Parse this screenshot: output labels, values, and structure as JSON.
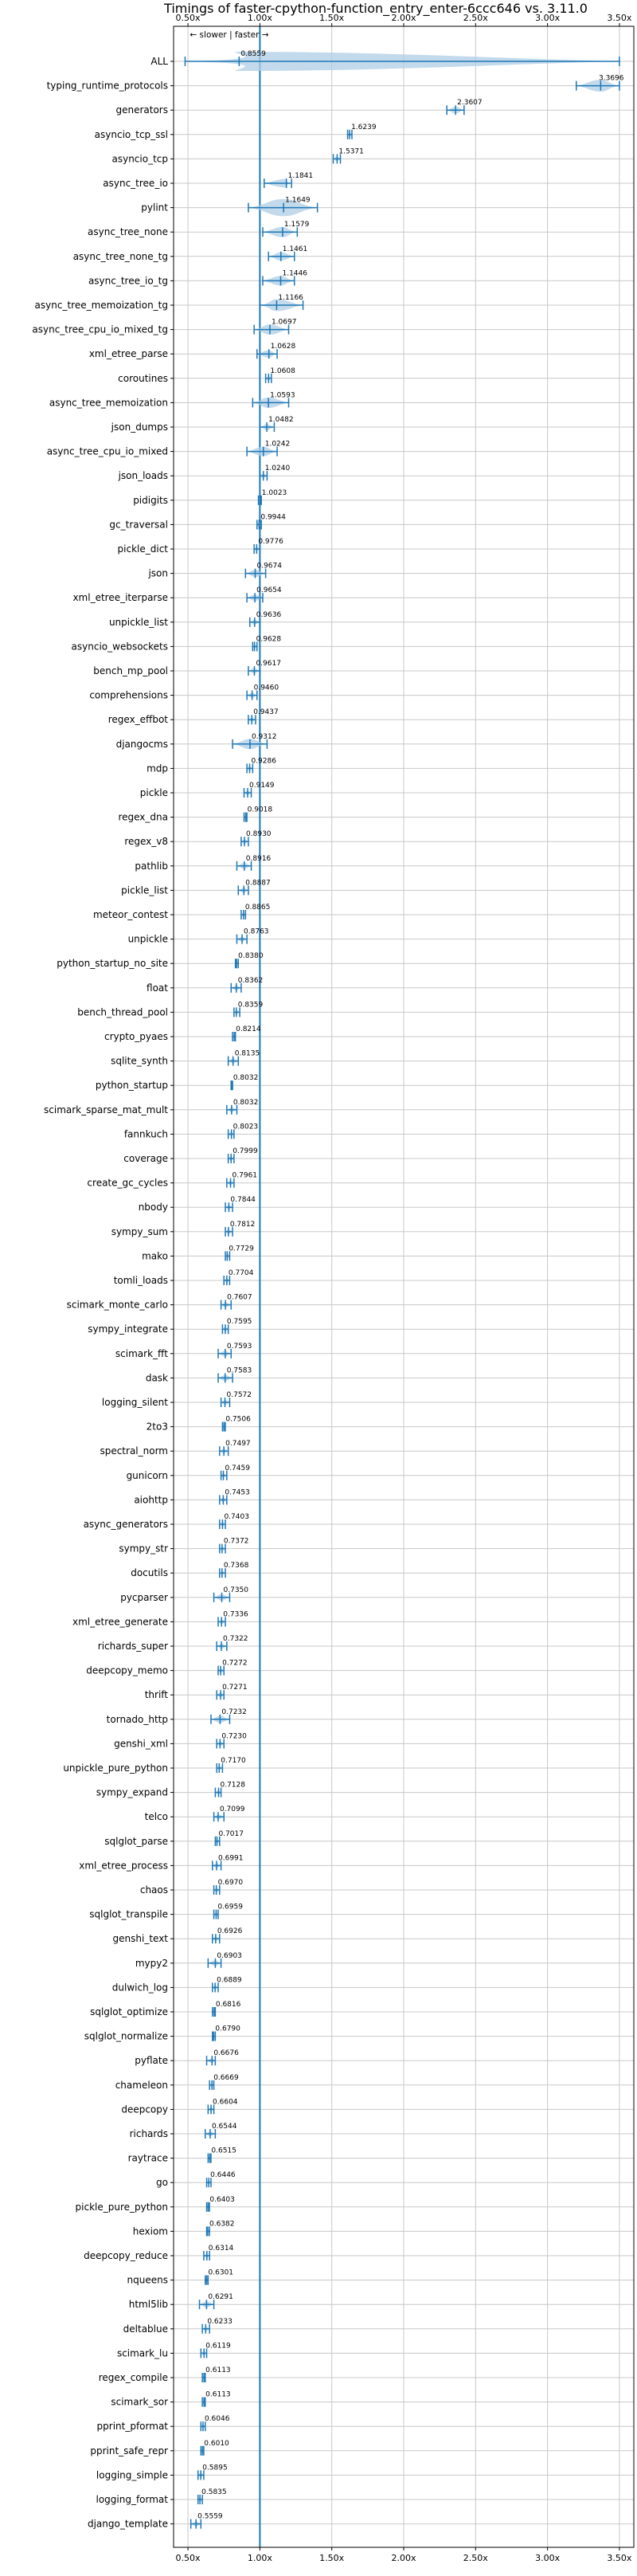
{
  "chart_data": {
    "type": "violin",
    "title": "Timings of faster-cpython-function_entry_enter-6ccc646 vs. 3.11.0",
    "direction_note": "← slower | faster →",
    "x_axis": {
      "range": [
        0.4,
        3.6
      ],
      "ticks": [
        0.5,
        1.0,
        1.5,
        2.0,
        2.5,
        3.0,
        3.5
      ],
      "tick_labels": [
        "0.50x",
        "1.00x",
        "1.50x",
        "2.00x",
        "2.50x",
        "3.00x",
        "3.50x"
      ],
      "reference_line": 1.0,
      "grid": true
    },
    "legend": null,
    "benchmarks": [
      {
        "name": "ALL",
        "value": 0.8559,
        "spread": [
          0.48,
          3.5
        ]
      },
      {
        "name": "typing_runtime_protocols",
        "value": 3.3696,
        "spread": [
          3.2,
          3.5
        ]
      },
      {
        "name": "generators",
        "value": 2.3607,
        "spread": [
          2.3,
          2.42
        ]
      },
      {
        "name": "asyncio_tcp_ssl",
        "value": 1.6239,
        "spread": [
          1.61,
          1.64
        ]
      },
      {
        "name": "asyncio_tcp",
        "value": 1.5371,
        "spread": [
          1.51,
          1.56
        ]
      },
      {
        "name": "async_tree_io",
        "value": 1.1841,
        "spread": [
          1.03,
          1.22
        ]
      },
      {
        "name": "pylint",
        "value": 1.1649,
        "spread": [
          0.92,
          1.4
        ]
      },
      {
        "name": "async_tree_none",
        "value": 1.1579,
        "spread": [
          1.02,
          1.26
        ]
      },
      {
        "name": "async_tree_none_tg",
        "value": 1.1461,
        "spread": [
          1.06,
          1.24
        ]
      },
      {
        "name": "async_tree_io_tg",
        "value": 1.1446,
        "spread": [
          1.02,
          1.24
        ]
      },
      {
        "name": "async_tree_memoization_tg",
        "value": 1.1166,
        "spread": [
          1.0,
          1.3
        ]
      },
      {
        "name": "async_tree_cpu_io_mixed_tg",
        "value": 1.0697,
        "spread": [
          0.96,
          1.2
        ]
      },
      {
        "name": "xml_etree_parse",
        "value": 1.0628,
        "spread": [
          0.98,
          1.12
        ]
      },
      {
        "name": "coroutines",
        "value": 1.0608,
        "spread": [
          1.04,
          1.08
        ]
      },
      {
        "name": "async_tree_memoization",
        "value": 1.0593,
        "spread": [
          0.95,
          1.2
        ]
      },
      {
        "name": "json_dumps",
        "value": 1.0482,
        "spread": [
          1.0,
          1.1
        ]
      },
      {
        "name": "async_tree_cpu_io_mixed",
        "value": 1.0242,
        "spread": [
          0.91,
          1.12
        ]
      },
      {
        "name": "json_loads",
        "value": 1.024,
        "spread": [
          1.0,
          1.05
        ]
      },
      {
        "name": "pidigits",
        "value": 1.0023,
        "spread": [
          0.99,
          1.01
        ]
      },
      {
        "name": "gc_traversal",
        "value": 0.9944,
        "spread": [
          0.98,
          1.01
        ]
      },
      {
        "name": "pickle_dict",
        "value": 0.9776,
        "spread": [
          0.96,
          1.0
        ]
      },
      {
        "name": "json",
        "value": 0.9674,
        "spread": [
          0.9,
          1.04
        ]
      },
      {
        "name": "xml_etree_iterparse",
        "value": 0.9654,
        "spread": [
          0.91,
          1.02
        ]
      },
      {
        "name": "unpickle_list",
        "value": 0.9636,
        "spread": [
          0.93,
          1.0
        ]
      },
      {
        "name": "asyncio_websockets",
        "value": 0.9628,
        "spread": [
          0.95,
          0.98
        ]
      },
      {
        "name": "bench_mp_pool",
        "value": 0.9617,
        "spread": [
          0.92,
          1.0
        ]
      },
      {
        "name": "comprehensions",
        "value": 0.946,
        "spread": [
          0.91,
          0.98
        ]
      },
      {
        "name": "regex_effbot",
        "value": 0.9437,
        "spread": [
          0.92,
          0.97
        ]
      },
      {
        "name": "djangocms",
        "value": 0.9312,
        "spread": [
          0.81,
          1.05
        ]
      },
      {
        "name": "mdp",
        "value": 0.9286,
        "spread": [
          0.91,
          0.95
        ]
      },
      {
        "name": "pickle",
        "value": 0.9149,
        "spread": [
          0.89,
          0.94
        ]
      },
      {
        "name": "regex_dna",
        "value": 0.9018,
        "spread": [
          0.89,
          0.91
        ]
      },
      {
        "name": "regex_v8",
        "value": 0.893,
        "spread": [
          0.87,
          0.92
        ]
      },
      {
        "name": "pathlib",
        "value": 0.8916,
        "spread": [
          0.84,
          0.94
        ]
      },
      {
        "name": "pickle_list",
        "value": 0.8887,
        "spread": [
          0.85,
          0.92
        ]
      },
      {
        "name": "meteor_contest",
        "value": 0.8865,
        "spread": [
          0.87,
          0.9
        ]
      },
      {
        "name": "unpickle",
        "value": 0.8763,
        "spread": [
          0.84,
          0.91
        ]
      },
      {
        "name": "python_startup_no_site",
        "value": 0.838,
        "spread": [
          0.83,
          0.85
        ]
      },
      {
        "name": "float",
        "value": 0.8362,
        "spread": [
          0.8,
          0.87
        ]
      },
      {
        "name": "bench_thread_pool",
        "value": 0.8359,
        "spread": [
          0.82,
          0.86
        ]
      },
      {
        "name": "crypto_pyaes",
        "value": 0.8214,
        "spread": [
          0.81,
          0.83
        ]
      },
      {
        "name": "sqlite_synth",
        "value": 0.8135,
        "spread": [
          0.78,
          0.85
        ]
      },
      {
        "name": "python_startup",
        "value": 0.8032,
        "spread": [
          0.8,
          0.81
        ]
      },
      {
        "name": "scimark_sparse_mat_mult",
        "value": 0.8032,
        "spread": [
          0.77,
          0.84
        ]
      },
      {
        "name": "fannkuch",
        "value": 0.8023,
        "spread": [
          0.78,
          0.82
        ]
      },
      {
        "name": "coverage",
        "value": 0.7999,
        "spread": [
          0.78,
          0.82
        ]
      },
      {
        "name": "create_gc_cycles",
        "value": 0.7961,
        "spread": [
          0.77,
          0.82
        ]
      },
      {
        "name": "nbody",
        "value": 0.7844,
        "spread": [
          0.76,
          0.81
        ]
      },
      {
        "name": "sympy_sum",
        "value": 0.7812,
        "spread": [
          0.76,
          0.81
        ]
      },
      {
        "name": "mako",
        "value": 0.7729,
        "spread": [
          0.76,
          0.79
        ]
      },
      {
        "name": "tomli_loads",
        "value": 0.7704,
        "spread": [
          0.75,
          0.79
        ]
      },
      {
        "name": "scimark_monte_carlo",
        "value": 0.7607,
        "spread": [
          0.73,
          0.8
        ]
      },
      {
        "name": "sympy_integrate",
        "value": 0.7595,
        "spread": [
          0.74,
          0.78
        ]
      },
      {
        "name": "scimark_fft",
        "value": 0.7593,
        "spread": [
          0.71,
          0.8
        ]
      },
      {
        "name": "dask",
        "value": 0.7583,
        "spread": [
          0.71,
          0.81
        ]
      },
      {
        "name": "logging_silent",
        "value": 0.7572,
        "spread": [
          0.73,
          0.79
        ]
      },
      {
        "name": "2to3",
        "value": 0.7506,
        "spread": [
          0.74,
          0.76
        ]
      },
      {
        "name": "spectral_norm",
        "value": 0.7497,
        "spread": [
          0.72,
          0.78
        ]
      },
      {
        "name": "gunicorn",
        "value": 0.7459,
        "spread": [
          0.73,
          0.77
        ]
      },
      {
        "name": "aiohttp",
        "value": 0.7453,
        "spread": [
          0.72,
          0.77
        ]
      },
      {
        "name": "async_generators",
        "value": 0.7403,
        "spread": [
          0.72,
          0.76
        ]
      },
      {
        "name": "sympy_str",
        "value": 0.7372,
        "spread": [
          0.72,
          0.76
        ]
      },
      {
        "name": "docutils",
        "value": 0.7368,
        "spread": [
          0.72,
          0.76
        ]
      },
      {
        "name": "pycparser",
        "value": 0.735,
        "spread": [
          0.68,
          0.79
        ]
      },
      {
        "name": "xml_etree_generate",
        "value": 0.7336,
        "spread": [
          0.71,
          0.76
        ]
      },
      {
        "name": "richards_super",
        "value": 0.7322,
        "spread": [
          0.7,
          0.77
        ]
      },
      {
        "name": "deepcopy_memo",
        "value": 0.7272,
        "spread": [
          0.71,
          0.75
        ]
      },
      {
        "name": "thrift",
        "value": 0.7271,
        "spread": [
          0.7,
          0.75
        ]
      },
      {
        "name": "tornado_http",
        "value": 0.7232,
        "spread": [
          0.66,
          0.79
        ]
      },
      {
        "name": "genshi_xml",
        "value": 0.723,
        "spread": [
          0.7,
          0.75
        ]
      },
      {
        "name": "unpickle_pure_python",
        "value": 0.717,
        "spread": [
          0.7,
          0.74
        ]
      },
      {
        "name": "sympy_expand",
        "value": 0.7128,
        "spread": [
          0.69,
          0.73
        ]
      },
      {
        "name": "telco",
        "value": 0.7099,
        "spread": [
          0.68,
          0.75
        ]
      },
      {
        "name": "sqlglot_parse",
        "value": 0.7017,
        "spread": [
          0.69,
          0.72
        ]
      },
      {
        "name": "xml_etree_process",
        "value": 0.6991,
        "spread": [
          0.67,
          0.73
        ]
      },
      {
        "name": "chaos",
        "value": 0.697,
        "spread": [
          0.68,
          0.72
        ]
      },
      {
        "name": "sqlglot_transpile",
        "value": 0.6959,
        "spread": [
          0.68,
          0.71
        ]
      },
      {
        "name": "genshi_text",
        "value": 0.6926,
        "spread": [
          0.67,
          0.72
        ]
      },
      {
        "name": "mypy2",
        "value": 0.6903,
        "spread": [
          0.64,
          0.73
        ]
      },
      {
        "name": "dulwich_log",
        "value": 0.6889,
        "spread": [
          0.67,
          0.71
        ]
      },
      {
        "name": "sqlglot_optimize",
        "value": 0.6816,
        "spread": [
          0.67,
          0.69
        ]
      },
      {
        "name": "sqlglot_normalize",
        "value": 0.679,
        "spread": [
          0.67,
          0.69
        ]
      },
      {
        "name": "pyflate",
        "value": 0.6676,
        "spread": [
          0.63,
          0.69
        ]
      },
      {
        "name": "chameleon",
        "value": 0.6669,
        "spread": [
          0.65,
          0.68
        ]
      },
      {
        "name": "deepcopy",
        "value": 0.6604,
        "spread": [
          0.64,
          0.68
        ]
      },
      {
        "name": "richards",
        "value": 0.6544,
        "spread": [
          0.62,
          0.69
        ]
      },
      {
        "name": "raytrace",
        "value": 0.6515,
        "spread": [
          0.64,
          0.66
        ]
      },
      {
        "name": "go",
        "value": 0.6446,
        "spread": [
          0.63,
          0.66
        ]
      },
      {
        "name": "pickle_pure_python",
        "value": 0.6403,
        "spread": [
          0.63,
          0.65
        ]
      },
      {
        "name": "hexiom",
        "value": 0.6382,
        "spread": [
          0.63,
          0.65
        ]
      },
      {
        "name": "deepcopy_reduce",
        "value": 0.6314,
        "spread": [
          0.61,
          0.65
        ]
      },
      {
        "name": "nqueens",
        "value": 0.6301,
        "spread": [
          0.62,
          0.64
        ]
      },
      {
        "name": "html5lib",
        "value": 0.6291,
        "spread": [
          0.58,
          0.68
        ]
      },
      {
        "name": "deltablue",
        "value": 0.6233,
        "spread": [
          0.6,
          0.65
        ]
      },
      {
        "name": "scimark_lu",
        "value": 0.6119,
        "spread": [
          0.59,
          0.63
        ]
      },
      {
        "name": "regex_compile",
        "value": 0.6113,
        "spread": [
          0.6,
          0.62
        ]
      },
      {
        "name": "scimark_sor",
        "value": 0.6113,
        "spread": [
          0.6,
          0.62
        ]
      },
      {
        "name": "pprint_pformat",
        "value": 0.6046,
        "spread": [
          0.59,
          0.62
        ]
      },
      {
        "name": "pprint_safe_repr",
        "value": 0.601,
        "spread": [
          0.59,
          0.61
        ]
      },
      {
        "name": "logging_simple",
        "value": 0.5895,
        "spread": [
          0.57,
          0.61
        ]
      },
      {
        "name": "logging_format",
        "value": 0.5835,
        "spread": [
          0.57,
          0.6
        ]
      },
      {
        "name": "django_template",
        "value": 0.5559,
        "spread": [
          0.52,
          0.59
        ]
      }
    ]
  },
  "colors": {
    "violin_fill": "#aecde6",
    "violin_edge": "#1f77b4",
    "median_line": "#1f77b4",
    "reference_line": "#1f77b4",
    "grid": "#c8c8c8",
    "axis": "#000000"
  }
}
